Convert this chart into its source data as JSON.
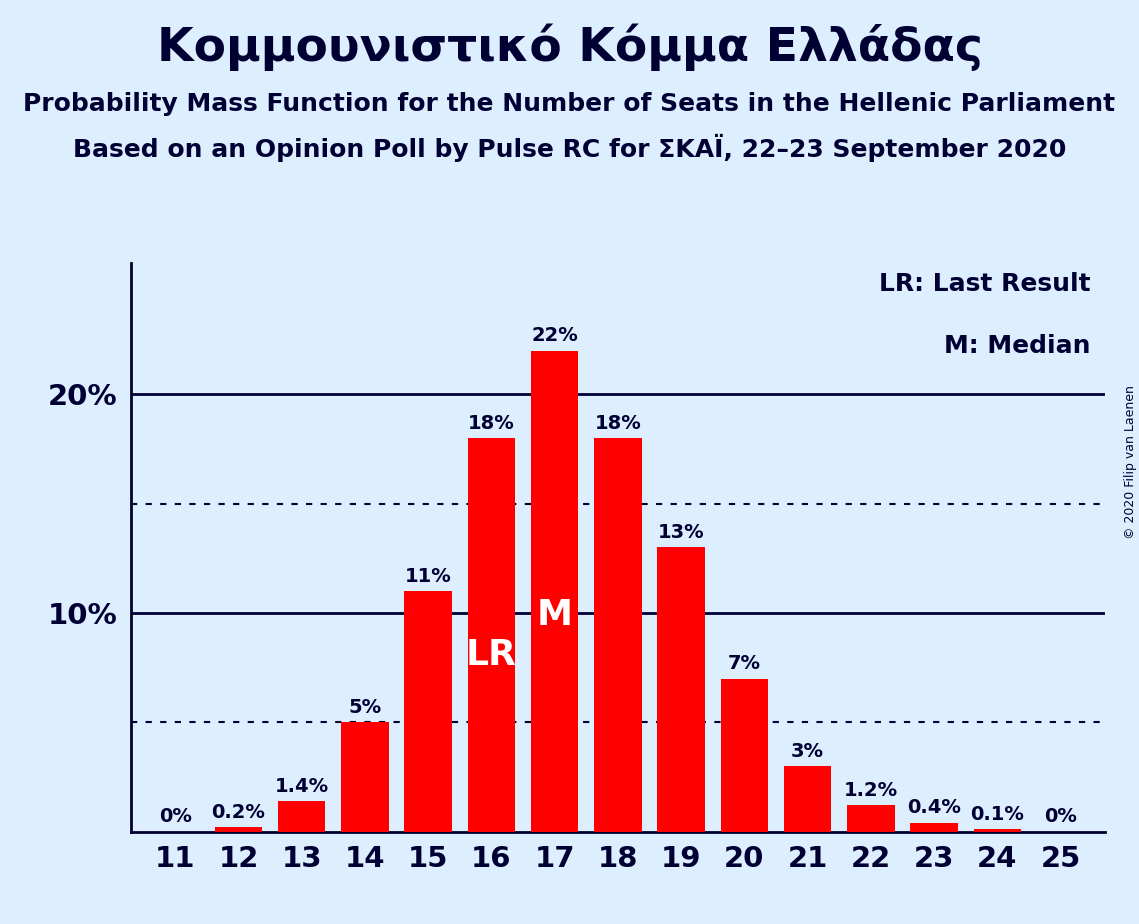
{
  "title": "Κομμουνιστικό Κόμμα Ελλάδας",
  "subtitle1": "Probability Mass Function for the Number of Seats in the Hellenic Parliament",
  "subtitle2": "Based on an Opinion Poll by Pulse RC for ΣΚΑΪ, 22–23 September 2020",
  "copyright": "© 2020 Filip van Laenen",
  "legend_lr": "LR: Last Result",
  "legend_m": "M: Median",
  "seats": [
    11,
    12,
    13,
    14,
    15,
    16,
    17,
    18,
    19,
    20,
    21,
    22,
    23,
    24,
    25
  ],
  "probabilities": [
    0.0,
    0.2,
    1.4,
    5.0,
    11.0,
    18.0,
    22.0,
    18.0,
    13.0,
    7.0,
    3.0,
    1.2,
    0.4,
    0.1,
    0.0
  ],
  "labels": [
    "0%",
    "0.2%",
    "1.4%",
    "5%",
    "11%",
    "18%",
    "22%",
    "18%",
    "13%",
    "7%",
    "3%",
    "1.2%",
    "0.4%",
    "0.1%",
    "0%"
  ],
  "bar_color": "#ff0000",
  "background_color": "#ddeeff",
  "text_color": "#000033",
  "lr_seat": 16,
  "median_seat": 17,
  "dotted_lines": [
    5,
    15
  ],
  "bar_width": 0.75,
  "ylim_max": 26,
  "title_fontsize": 34,
  "subtitle_fontsize": 18,
  "tick_fontsize": 21,
  "label_fontsize": 14,
  "legend_fontsize": 18,
  "bar_label_fontsize": 20,
  "in_bar_fontsize": 26
}
